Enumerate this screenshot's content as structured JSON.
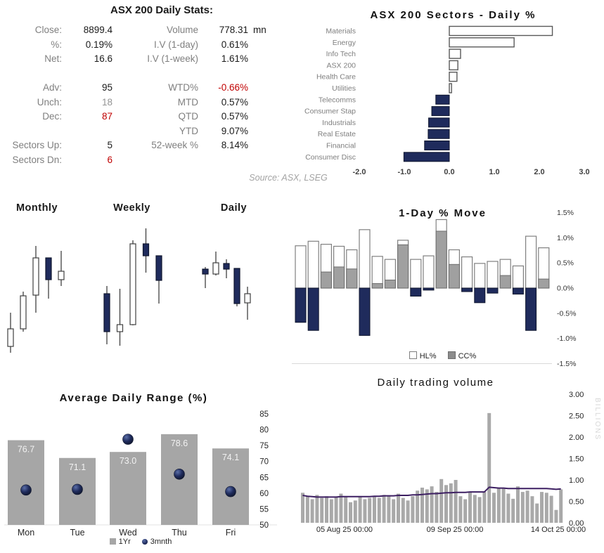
{
  "stats": {
    "title": "ASX 200 Daily Stats:",
    "source": "Source: ASX, LSEG",
    "rows": [
      {
        "l1": "Close:",
        "v1": "8899.4",
        "l2": "Volume",
        "v2": "778.31",
        "unit": "mn"
      },
      {
        "l1": "%:",
        "v1": "0.19%",
        "l2": "I.V (1-day)",
        "v2": "0.61%",
        "unit": ""
      },
      {
        "l1": "Net:",
        "v1": "16.6",
        "l2": "I.V (1-week)",
        "v2": "1.61%",
        "unit": ""
      },
      {
        "l1": "",
        "v1": "",
        "l2": "",
        "v2": "",
        "unit": ""
      },
      {
        "l1": "Adv:",
        "v1": "95",
        "l2": "WTD%",
        "v2": "-0.66%",
        "c2": "neg",
        "unit": ""
      },
      {
        "l1": "Unch:",
        "v1": "18",
        "c1": "muted",
        "l2": "MTD",
        "v2": "0.57%",
        "unit": ""
      },
      {
        "l1": "Dec:",
        "v1": "87",
        "c1": "neg",
        "l2": "QTD",
        "v2": "0.57%",
        "unit": ""
      },
      {
        "l1": "",
        "v1": "",
        "l2": "YTD",
        "v2": "9.07%",
        "unit": ""
      },
      {
        "l1": "Sectors Up:",
        "v1": "5",
        "l2": "52-week %",
        "v2": "8.14%",
        "unit": ""
      },
      {
        "l1": "Sectors Dn:",
        "v1": "6",
        "c1": "neg",
        "l2": "",
        "v2": "",
        "unit": ""
      }
    ]
  },
  "colors": {
    "navy": "#1f2b5c",
    "navy_dark": "#10172e",
    "red": "#c00000",
    "bar_gray": "#a6a6a6",
    "cc_gray": "#a0a0a0",
    "vol_gray": "#a9a9a9",
    "purple_line": "#3d1f62",
    "label_gray": "#7f7f7f",
    "axis_gray": "#404040",
    "wick": "#404040"
  },
  "chart_data": [
    {
      "id": "sectors",
      "type": "bar",
      "orientation": "horizontal",
      "title": "ASX 200 Sectors - Daily %",
      "categories": [
        "Materials",
        "Energy",
        "Info Tech",
        "ASX 200",
        "Health Care",
        "Utilities",
        "Telecomms",
        "Consumer Stap",
        "Industrials",
        "Real Estate",
        "Financial",
        "Consumer Disc"
      ],
      "values": [
        2.29,
        1.44,
        0.25,
        0.19,
        0.17,
        0.05,
        -0.3,
        -0.39,
        -0.46,
        -0.47,
        -0.55,
        -1.01
      ],
      "xticks": [
        "-2.0",
        "-1.0",
        "0.0",
        "1.0",
        "2.0",
        "3.0"
      ],
      "xlim": [
        -2.0,
        3.0
      ],
      "grid": false
    },
    {
      "id": "candlesticks",
      "type": "candlestick",
      "panels": [
        {
          "label": "Monthly",
          "candles": [
            {
              "h": 75,
              "l": 18,
              "o": 27,
              "c": 52
            },
            {
              "h": 105,
              "l": 48,
              "o": 52,
              "c": 99
            },
            {
              "h": 170,
              "l": 75,
              "o": 100,
              "c": 153
            },
            {
              "h": 153,
              "l": 95,
              "o": 153,
              "c": 122
            },
            {
              "h": 163,
              "l": 113,
              "o": 122,
              "c": 134
            }
          ]
        },
        {
          "label": "Weekly",
          "candles": [
            {
              "h": 113,
              "l": 30,
              "o": 102,
              "c": 48
            },
            {
              "h": 109,
              "l": 28,
              "o": 48,
              "c": 58
            },
            {
              "h": 178,
              "l": 57,
              "o": 58,
              "c": 173
            },
            {
              "h": 195,
              "l": 132,
              "o": 173,
              "c": 156
            },
            {
              "h": 156,
              "l": 88,
              "o": 156,
              "c": 121
            }
          ]
        },
        {
          "label": "Daily",
          "candles": [
            {
              "h": 140,
              "l": 110,
              "o": 137,
              "c": 130
            },
            {
              "h": 162,
              "l": 128,
              "o": 130,
              "c": 146
            },
            {
              "h": 151,
              "l": 124,
              "o": 145,
              "c": 137
            },
            {
              "h": 138,
              "l": 84,
              "o": 138,
              "c": 88
            },
            {
              "h": 112,
              "l": 65,
              "o": 89,
              "c": 102
            }
          ]
        }
      ]
    },
    {
      "id": "one_day_move",
      "type": "bar",
      "title": "1-Day % Move",
      "series": [
        {
          "name": "HL%",
          "values": [
            0.84,
            0.93,
            0.87,
            0.83,
            0.76,
            1.16,
            0.63,
            0.57,
            0.95,
            0.57,
            0.64,
            1.36,
            0.76,
            0.62,
            0.49,
            0.53,
            0.57,
            0.44,
            1.03,
            0.8
          ]
        },
        {
          "name": "CC%",
          "values": [
            -0.68,
            -0.84,
            0.32,
            0.42,
            0.38,
            -0.94,
            0.09,
            0.16,
            0.86,
            -0.16,
            -0.04,
            1.13,
            0.47,
            -0.07,
            -0.29,
            -0.1,
            0.25,
            -0.12,
            -0.84,
            0.18
          ]
        }
      ],
      "ylim": [
        -1.5,
        1.5
      ],
      "yticks": [
        "1.5%",
        "1.0%",
        "0.5%",
        "0.0%",
        "-0.5%",
        "-1.0%",
        "-1.5%"
      ],
      "legend_position": "bottom",
      "grid": false
    },
    {
      "id": "avg_daily_range",
      "type": "bar",
      "title": "Average Daily Range (%)",
      "categories": [
        "Mon",
        "Tue",
        "Wed",
        "Thu",
        "Fri"
      ],
      "series": [
        {
          "name": "1Yr",
          "values": [
            76.7,
            71.1,
            73.0,
            78.6,
            74.1
          ]
        },
        {
          "name": "3mnth",
          "values": [
            61.0,
            61.2,
            77.0,
            66.0,
            60.5
          ]
        }
      ],
      "bar_labels": [
        "76.7",
        "71.1",
        "73.0",
        "78.6",
        "74.1"
      ],
      "ylim": [
        50,
        85
      ],
      "yticks": [
        85,
        80,
        75,
        70,
        65,
        60,
        55,
        50
      ],
      "legend_position": "bottom",
      "grid": false
    },
    {
      "id": "daily_trading_volume",
      "type": "bar",
      "title": "Daily trading volume",
      "ylabel": "BILLIONS",
      "yticks": [
        "3.00",
        "2.50",
        "2.00",
        "1.50",
        "1.00",
        "0.50",
        "0.00"
      ],
      "ylim": [
        0,
        3
      ],
      "xticks": [
        "05 Aug 25 00:00",
        "09 Sep 25 00:00",
        "14 Oct 25 00:00"
      ],
      "values": [
        0.7,
        0.62,
        0.55,
        0.65,
        0.58,
        0.62,
        0.55,
        0.6,
        0.68,
        0.62,
        0.48,
        0.52,
        0.6,
        0.55,
        0.58,
        0.62,
        0.58,
        0.65,
        0.62,
        0.55,
        0.68,
        0.58,
        0.52,
        0.62,
        0.75,
        0.82,
        0.78,
        0.85,
        0.72,
        1.02,
        0.88,
        0.92,
        1.0,
        0.62,
        0.55,
        0.72,
        0.65,
        0.6,
        0.72,
        2.56,
        0.7,
        0.82,
        0.8,
        0.68,
        0.56,
        0.85,
        0.72,
        0.75,
        0.62,
        0.45,
        0.72,
        0.7,
        0.63,
        0.3,
        0.78
      ],
      "line": [
        0.64,
        0.62,
        0.61,
        0.6,
        0.6,
        0.6,
        0.6,
        0.6,
        0.61,
        0.61,
        0.61,
        0.61,
        0.61,
        0.61,
        0.61,
        0.62,
        0.62,
        0.63,
        0.63,
        0.63,
        0.64,
        0.64,
        0.64,
        0.65,
        0.65,
        0.66,
        0.67,
        0.68,
        0.68,
        0.69,
        0.7,
        0.7,
        0.71,
        0.71,
        0.71,
        0.72,
        0.72,
        0.72,
        0.72,
        0.83,
        0.82,
        0.81,
        0.81,
        0.8,
        0.8,
        0.8,
        0.8,
        0.8,
        0.8,
        0.8,
        0.8,
        0.8,
        0.79,
        0.78,
        0.79
      ],
      "grid": false
    }
  ]
}
